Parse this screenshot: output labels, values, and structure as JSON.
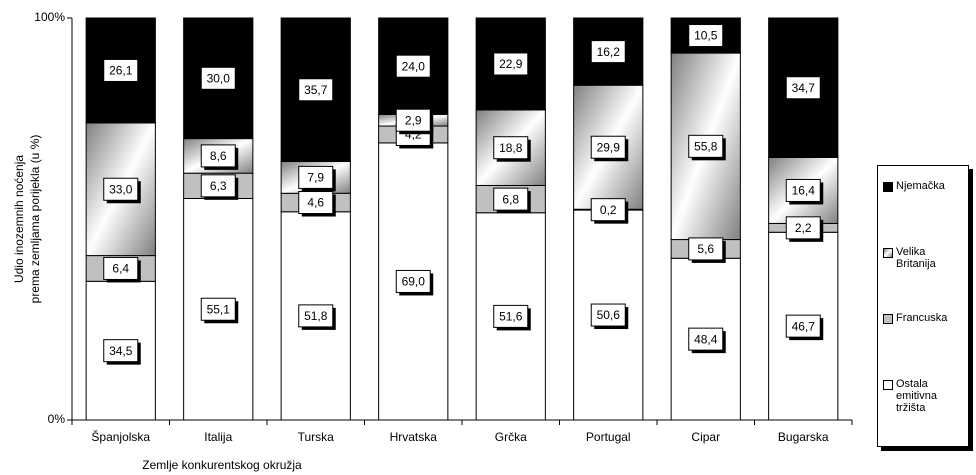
{
  "chart_data": {
    "type": "bar",
    "stacking": "percent",
    "ylabel": [
      "Udio inozemnih noćenja",
      "prema zemljama porijekla (u %)"
    ],
    "xlabel": "Zemlje konkurentskog okružja",
    "categories": [
      "Španjolska",
      "Italija",
      "Turska",
      "Hrvatska",
      "Grčka",
      "Portugal",
      "Cipar",
      "Bugarska"
    ],
    "ylim": [
      0,
      100
    ],
    "yticks": [
      {
        "value": 0,
        "label": "0%"
      },
      {
        "value": 100,
        "label": "100%"
      }
    ],
    "series": [
      {
        "name": "Ostala emitivna tržišta",
        "color": "#ffffff",
        "values": [
          34.5,
          55.1,
          51.8,
          69.0,
          51.6,
          50.6,
          48.4,
          46.7
        ],
        "value_labels": [
          "34,5",
          "55,1",
          "51,8",
          "69,0",
          "51,6",
          "50,6",
          "48,4",
          "46,7"
        ]
      },
      {
        "name": "Francuska",
        "color": "#c0c0c0",
        "values": [
          6.4,
          6.3,
          4.6,
          4.2,
          6.8,
          0.2,
          5.6,
          2.2
        ],
        "value_labels": [
          "6,4",
          "6,3",
          "4,6",
          "4,2",
          "6,8",
          "0,2",
          "5,6",
          "2,2"
        ]
      },
      {
        "name": "Velika Britanija",
        "color": "#808080",
        "values": [
          33.0,
          8.6,
          7.9,
          2.9,
          18.8,
          29.9,
          55.8,
          16.4
        ],
        "value_labels": [
          "33,0",
          "8,6",
          "7,9",
          "2,9",
          "18,8",
          "29,9",
          "55,8",
          "16,4"
        ]
      },
      {
        "name": "Njemačka",
        "color": "#000000",
        "values": [
          26.1,
          30.0,
          35.7,
          24.0,
          22.9,
          16.2,
          10.5,
          34.7
        ],
        "value_labels": [
          "26,1",
          "30,0",
          "35,7",
          "24,0",
          "22,9",
          "16,2",
          "10,5",
          "34,7"
        ]
      }
    ]
  }
}
